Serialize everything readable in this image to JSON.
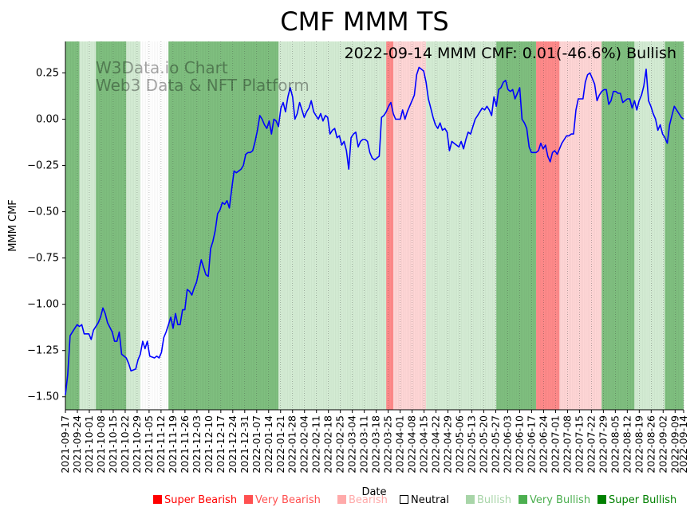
{
  "chart_data": {
    "type": "line",
    "title": "CMF MMM TS",
    "annotation": "2022-09-14 MMM CMF: 0.01(-46.6%) Bullish",
    "watermark": [
      "W3Data.io Chart",
      "Web3 Data & NFT Platform"
    ],
    "xlabel": "Date",
    "ylabel": "MMM CMF",
    "ylim": [
      -1.57,
      0.42
    ],
    "yticks": [
      0.25,
      0.0,
      -0.25,
      -0.5,
      -0.75,
      -1.0,
      -1.25,
      -1.5
    ],
    "ytick_labels": [
      "0.25",
      "0.00",
      "−0.25",
      "−0.50",
      "−0.75",
      "−1.00",
      "−1.25",
      "−1.50"
    ],
    "xlim": [
      "2021-09-17",
      "2022-09-14"
    ],
    "xtick_labels": [
      "2021-09-17",
      "2021-09-24",
      "2021-10-01",
      "2021-10-08",
      "2021-10-15",
      "2021-10-22",
      "2021-10-29",
      "2021-11-05",
      "2021-11-12",
      "2021-11-19",
      "2021-11-26",
      "2021-12-03",
      "2021-12-10",
      "2021-12-17",
      "2021-12-24",
      "2021-12-31",
      "2022-01-07",
      "2022-01-14",
      "2022-01-21",
      "2022-01-28",
      "2022-02-04",
      "2022-02-11",
      "2022-02-18",
      "2022-02-25",
      "2022-03-04",
      "2022-03-11",
      "2022-03-18",
      "2022-03-25",
      "2022-04-01",
      "2022-04-08",
      "2022-04-15",
      "2022-04-22",
      "2022-04-29",
      "2022-05-06",
      "2022-05-13",
      "2022-05-20",
      "2022-05-27",
      "2022-06-03",
      "2022-06-10",
      "2022-06-17",
      "2022-06-24",
      "2022-07-01",
      "2022-07-08",
      "2022-07-15",
      "2022-07-22",
      "2022-07-29",
      "2022-08-05",
      "2022-08-12",
      "2022-08-19",
      "2022-08-26",
      "2022-09-02",
      "2022-09-09",
      "2022-09-14"
    ],
    "series": [
      {
        "name": "MMM CMF",
        "color": "#0000ff",
        "points": [
          [
            0,
            -1.49
          ],
          [
            1,
            -1.38
          ],
          [
            2,
            -1.17
          ],
          [
            4,
            -1.13
          ],
          [
            5,
            -1.11
          ],
          [
            6,
            -1.12
          ],
          [
            7,
            -1.11
          ],
          [
            8,
            -1.16
          ],
          [
            10,
            -1.16
          ],
          [
            11,
            -1.19
          ],
          [
            12,
            -1.14
          ],
          [
            14,
            -1.1
          ],
          [
            15,
            -1.07
          ],
          [
            16,
            -1.02
          ],
          [
            17,
            -1.05
          ],
          [
            18,
            -1.1
          ],
          [
            20,
            -1.15
          ],
          [
            21,
            -1.2
          ],
          [
            22,
            -1.2
          ],
          [
            23,
            -1.15
          ],
          [
            24,
            -1.27
          ],
          [
            26,
            -1.29
          ],
          [
            27,
            -1.32
          ],
          [
            28,
            -1.36
          ],
          [
            30,
            -1.35
          ],
          [
            31,
            -1.3
          ],
          [
            32,
            -1.27
          ],
          [
            33,
            -1.2
          ],
          [
            34,
            -1.24
          ],
          [
            35,
            -1.2
          ],
          [
            36,
            -1.28
          ],
          [
            38,
            -1.29
          ],
          [
            39,
            -1.28
          ],
          [
            40,
            -1.29
          ],
          [
            41,
            -1.26
          ],
          [
            42,
            -1.18
          ],
          [
            43,
            -1.15
          ],
          [
            44,
            -1.11
          ],
          [
            45,
            -1.07
          ],
          [
            46,
            -1.13
          ],
          [
            47,
            -1.05
          ],
          [
            48,
            -1.11
          ],
          [
            49,
            -1.11
          ],
          [
            50,
            -1.03
          ],
          [
            51,
            -1.03
          ],
          [
            52,
            -0.92
          ],
          [
            53,
            -0.93
          ],
          [
            54,
            -0.95
          ],
          [
            55,
            -0.91
          ],
          [
            56,
            -0.88
          ],
          [
            57,
            -0.82
          ],
          [
            58,
            -0.76
          ],
          [
            59,
            -0.8
          ],
          [
            60,
            -0.84
          ],
          [
            61,
            -0.85
          ],
          [
            62,
            -0.7
          ],
          [
            63,
            -0.66
          ],
          [
            64,
            -0.6
          ],
          [
            65,
            -0.51
          ],
          [
            66,
            -0.49
          ],
          [
            67,
            -0.45
          ],
          [
            68,
            -0.46
          ],
          [
            69,
            -0.44
          ],
          [
            70,
            -0.48
          ],
          [
            71,
            -0.38
          ],
          [
            72,
            -0.28
          ],
          [
            73,
            -0.29
          ],
          [
            74,
            -0.28
          ],
          [
            75,
            -0.27
          ],
          [
            76,
            -0.25
          ],
          [
            77,
            -0.19
          ],
          [
            78,
            -0.18
          ],
          [
            79,
            -0.18
          ],
          [
            80,
            -0.17
          ],
          [
            81,
            -0.12
          ],
          [
            82,
            -0.06
          ],
          [
            83,
            0.02
          ],
          [
            84,
            0.0
          ],
          [
            85,
            -0.03
          ],
          [
            86,
            -0.05
          ],
          [
            87,
            -0.01
          ],
          [
            88,
            -0.08
          ],
          [
            89,
            -0.0
          ],
          [
            90,
            -0.01
          ],
          [
            91,
            -0.04
          ],
          [
            92,
            0.06
          ],
          [
            93,
            0.09
          ],
          [
            94,
            0.04
          ],
          [
            95,
            0.12
          ],
          [
            96,
            0.17
          ],
          [
            97,
            0.12
          ],
          [
            98,
            -0.0
          ],
          [
            99,
            0.03
          ],
          [
            100,
            0.09
          ],
          [
            101,
            0.05
          ],
          [
            102,
            0.01
          ],
          [
            103,
            0.04
          ],
          [
            104,
            0.06
          ],
          [
            105,
            0.1
          ],
          [
            106,
            0.04
          ],
          [
            107,
            0.02
          ],
          [
            108,
            0.0
          ],
          [
            109,
            0.03
          ],
          [
            110,
            -0.01
          ],
          [
            111,
            0.02
          ],
          [
            112,
            0.01
          ],
          [
            113,
            -0.08
          ],
          [
            114,
            -0.06
          ],
          [
            115,
            -0.05
          ],
          [
            116,
            -0.1
          ],
          [
            117,
            -0.09
          ],
          [
            118,
            -0.14
          ],
          [
            119,
            -0.12
          ],
          [
            120,
            -0.17
          ],
          [
            121,
            -0.27
          ],
          [
            122,
            -0.1
          ],
          [
            123,
            -0.08
          ],
          [
            124,
            -0.07
          ],
          [
            125,
            -0.15
          ],
          [
            126,
            -0.12
          ],
          [
            127,
            -0.11
          ],
          [
            128,
            -0.11
          ],
          [
            129,
            -0.12
          ],
          [
            130,
            -0.18
          ],
          [
            131,
            -0.21
          ],
          [
            132,
            -0.22
          ],
          [
            133,
            -0.21
          ],
          [
            134,
            -0.2
          ],
          [
            135,
            0.01
          ],
          [
            136,
            0.02
          ],
          [
            137,
            0.04
          ],
          [
            138,
            0.07
          ],
          [
            139,
            0.09
          ],
          [
            140,
            0.03
          ],
          [
            141,
            0.0
          ],
          [
            142,
            -0.0
          ],
          [
            143,
            0.0
          ],
          [
            144,
            0.05
          ],
          [
            145,
            0.0
          ],
          [
            146,
            0.04
          ],
          [
            147,
            0.07
          ],
          [
            148,
            0.1
          ],
          [
            149,
            0.13
          ],
          [
            150,
            0.24
          ],
          [
            151,
            0.28
          ],
          [
            152,
            0.27
          ],
          [
            153,
            0.26
          ],
          [
            154,
            0.2
          ],
          [
            155,
            0.11
          ],
          [
            156,
            0.06
          ],
          [
            157,
            0.01
          ],
          [
            158,
            -0.03
          ],
          [
            159,
            -0.05
          ],
          [
            160,
            -0.02
          ],
          [
            161,
            -0.06
          ],
          [
            162,
            -0.05
          ],
          [
            163,
            -0.07
          ],
          [
            164,
            -0.17
          ],
          [
            165,
            -0.12
          ],
          [
            166,
            -0.13
          ],
          [
            167,
            -0.14
          ],
          [
            168,
            -0.15
          ],
          [
            169,
            -0.12
          ],
          [
            170,
            -0.16
          ],
          [
            171,
            -0.11
          ],
          [
            172,
            -0.07
          ],
          [
            173,
            -0.08
          ],
          [
            174,
            -0.04
          ],
          [
            175,
            0.0
          ],
          [
            176,
            0.02
          ],
          [
            177,
            0.04
          ],
          [
            178,
            0.06
          ],
          [
            179,
            0.05
          ],
          [
            180,
            0.07
          ],
          [
            181,
            0.05
          ],
          [
            182,
            0.02
          ],
          [
            183,
            0.12
          ],
          [
            184,
            0.07
          ],
          [
            185,
            0.16
          ],
          [
            186,
            0.17
          ],
          [
            187,
            0.2
          ],
          [
            188,
            0.21
          ],
          [
            189,
            0.16
          ],
          [
            190,
            0.15
          ],
          [
            191,
            0.16
          ],
          [
            192,
            0.11
          ],
          [
            193,
            0.14
          ],
          [
            194,
            0.17
          ],
          [
            195,
            0.0
          ],
          [
            196,
            -0.02
          ],
          [
            197,
            -0.05
          ],
          [
            198,
            -0.15
          ],
          [
            199,
            -0.18
          ],
          [
            200,
            -0.18
          ],
          [
            201,
            -0.18
          ],
          [
            202,
            -0.17
          ],
          [
            203,
            -0.13
          ],
          [
            204,
            -0.16
          ],
          [
            205,
            -0.14
          ],
          [
            206,
            -0.2
          ],
          [
            207,
            -0.23
          ],
          [
            208,
            -0.18
          ],
          [
            209,
            -0.17
          ],
          [
            210,
            -0.19
          ],
          [
            211,
            -0.16
          ],
          [
            212,
            -0.13
          ],
          [
            213,
            -0.11
          ],
          [
            214,
            -0.09
          ],
          [
            215,
            -0.09
          ],
          [
            216,
            -0.08
          ],
          [
            217,
            -0.08
          ],
          [
            218,
            0.05
          ],
          [
            219,
            0.11
          ],
          [
            220,
            0.11
          ],
          [
            221,
            0.11
          ],
          [
            222,
            0.2
          ],
          [
            223,
            0.24
          ],
          [
            224,
            0.25
          ],
          [
            225,
            0.22
          ],
          [
            226,
            0.19
          ],
          [
            227,
            0.1
          ],
          [
            228,
            0.13
          ],
          [
            229,
            0.15
          ],
          [
            230,
            0.16
          ],
          [
            231,
            0.16
          ],
          [
            232,
            0.08
          ],
          [
            233,
            0.1
          ],
          [
            234,
            0.15
          ],
          [
            235,
            0.15
          ],
          [
            236,
            0.14
          ],
          [
            237,
            0.14
          ],
          [
            238,
            0.09
          ],
          [
            239,
            0.1
          ],
          [
            240,
            0.11
          ],
          [
            241,
            0.11
          ],
          [
            242,
            0.06
          ],
          [
            243,
            0.1
          ],
          [
            244,
            0.05
          ],
          [
            245,
            0.1
          ],
          [
            246,
            0.13
          ],
          [
            247,
            0.18
          ],
          [
            248,
            0.27
          ],
          [
            249,
            0.1
          ],
          [
            250,
            0.07
          ],
          [
            251,
            0.03
          ],
          [
            252,
            -0.0
          ],
          [
            253,
            -0.06
          ],
          [
            254,
            -0.03
          ],
          [
            255,
            -0.08
          ],
          [
            256,
            -0.1
          ],
          [
            257,
            -0.13
          ],
          [
            258,
            -0.03
          ],
          [
            259,
            0.02
          ],
          [
            260,
            0.07
          ],
          [
            261,
            0.05
          ],
          [
            262,
            0.03
          ],
          [
            263,
            0.01
          ],
          [
            264,
            0.0
          ]
        ]
      }
    ],
    "sentiment_bands": [
      {
        "from": 0,
        "to": 6,
        "level": "Very Bullish"
      },
      {
        "from": 6,
        "to": 13,
        "level": "Bullish"
      },
      {
        "from": 13,
        "to": 26,
        "level": "Very Bullish"
      },
      {
        "from": 26,
        "to": 32,
        "level": "Bullish"
      },
      {
        "from": 32,
        "to": 44,
        "level": "Neutral"
      },
      {
        "from": 44,
        "to": 91,
        "level": "Very Bullish"
      },
      {
        "from": 91,
        "to": 126,
        "level": "Bullish"
      },
      {
        "from": 126,
        "to": 137,
        "level": "Bullish"
      },
      {
        "from": 137,
        "to": 140,
        "level": "Very Bearish"
      },
      {
        "from": 140,
        "to": 154,
        "level": "Bearish"
      },
      {
        "from": 154,
        "to": 170,
        "level": "Bullish"
      },
      {
        "from": 170,
        "to": 184,
        "level": "Bullish"
      },
      {
        "from": 184,
        "to": 201,
        "level": "Very Bullish"
      },
      {
        "from": 201,
        "to": 211,
        "level": "Very Bearish"
      },
      {
        "from": 211,
        "to": 229,
        "level": "Bearish"
      },
      {
        "from": 229,
        "to": 243,
        "level": "Very Bullish"
      },
      {
        "from": 243,
        "to": 256,
        "level": "Bullish"
      },
      {
        "from": 256,
        "to": 264,
        "level": "Very Bullish"
      }
    ],
    "legend": [
      {
        "label": "Super Bearish",
        "color": "#ff0000",
        "text_color": "#ff0000"
      },
      {
        "label": "Very Bearish",
        "color": "#ff5050",
        "text_color": "#ff5050"
      },
      {
        "label": "Bearish",
        "color": "#ffaaaa",
        "text_color": "#ffaaaa"
      },
      {
        "label": "Neutral",
        "color": "#ffffff",
        "text_color": "#000000"
      },
      {
        "label": "Bullish",
        "color": "#a8d5a8",
        "text_color": "#a8d5a8"
      },
      {
        "label": "Very Bullish",
        "color": "#4caf50",
        "text_color": "#4caf50"
      },
      {
        "label": "Super Bullish",
        "color": "#008000",
        "text_color": "#008000"
      }
    ],
    "band_colors": {
      "Super Bearish": "#ff6060",
      "Very Bearish": "#ff8a8a",
      "Bearish": "#ffd6d6",
      "Neutral": "#ffffff",
      "Bullish": "#d4ecd4",
      "Very Bullish": "#7fbf7f",
      "Super Bullish": "#3f9f3f"
    }
  }
}
